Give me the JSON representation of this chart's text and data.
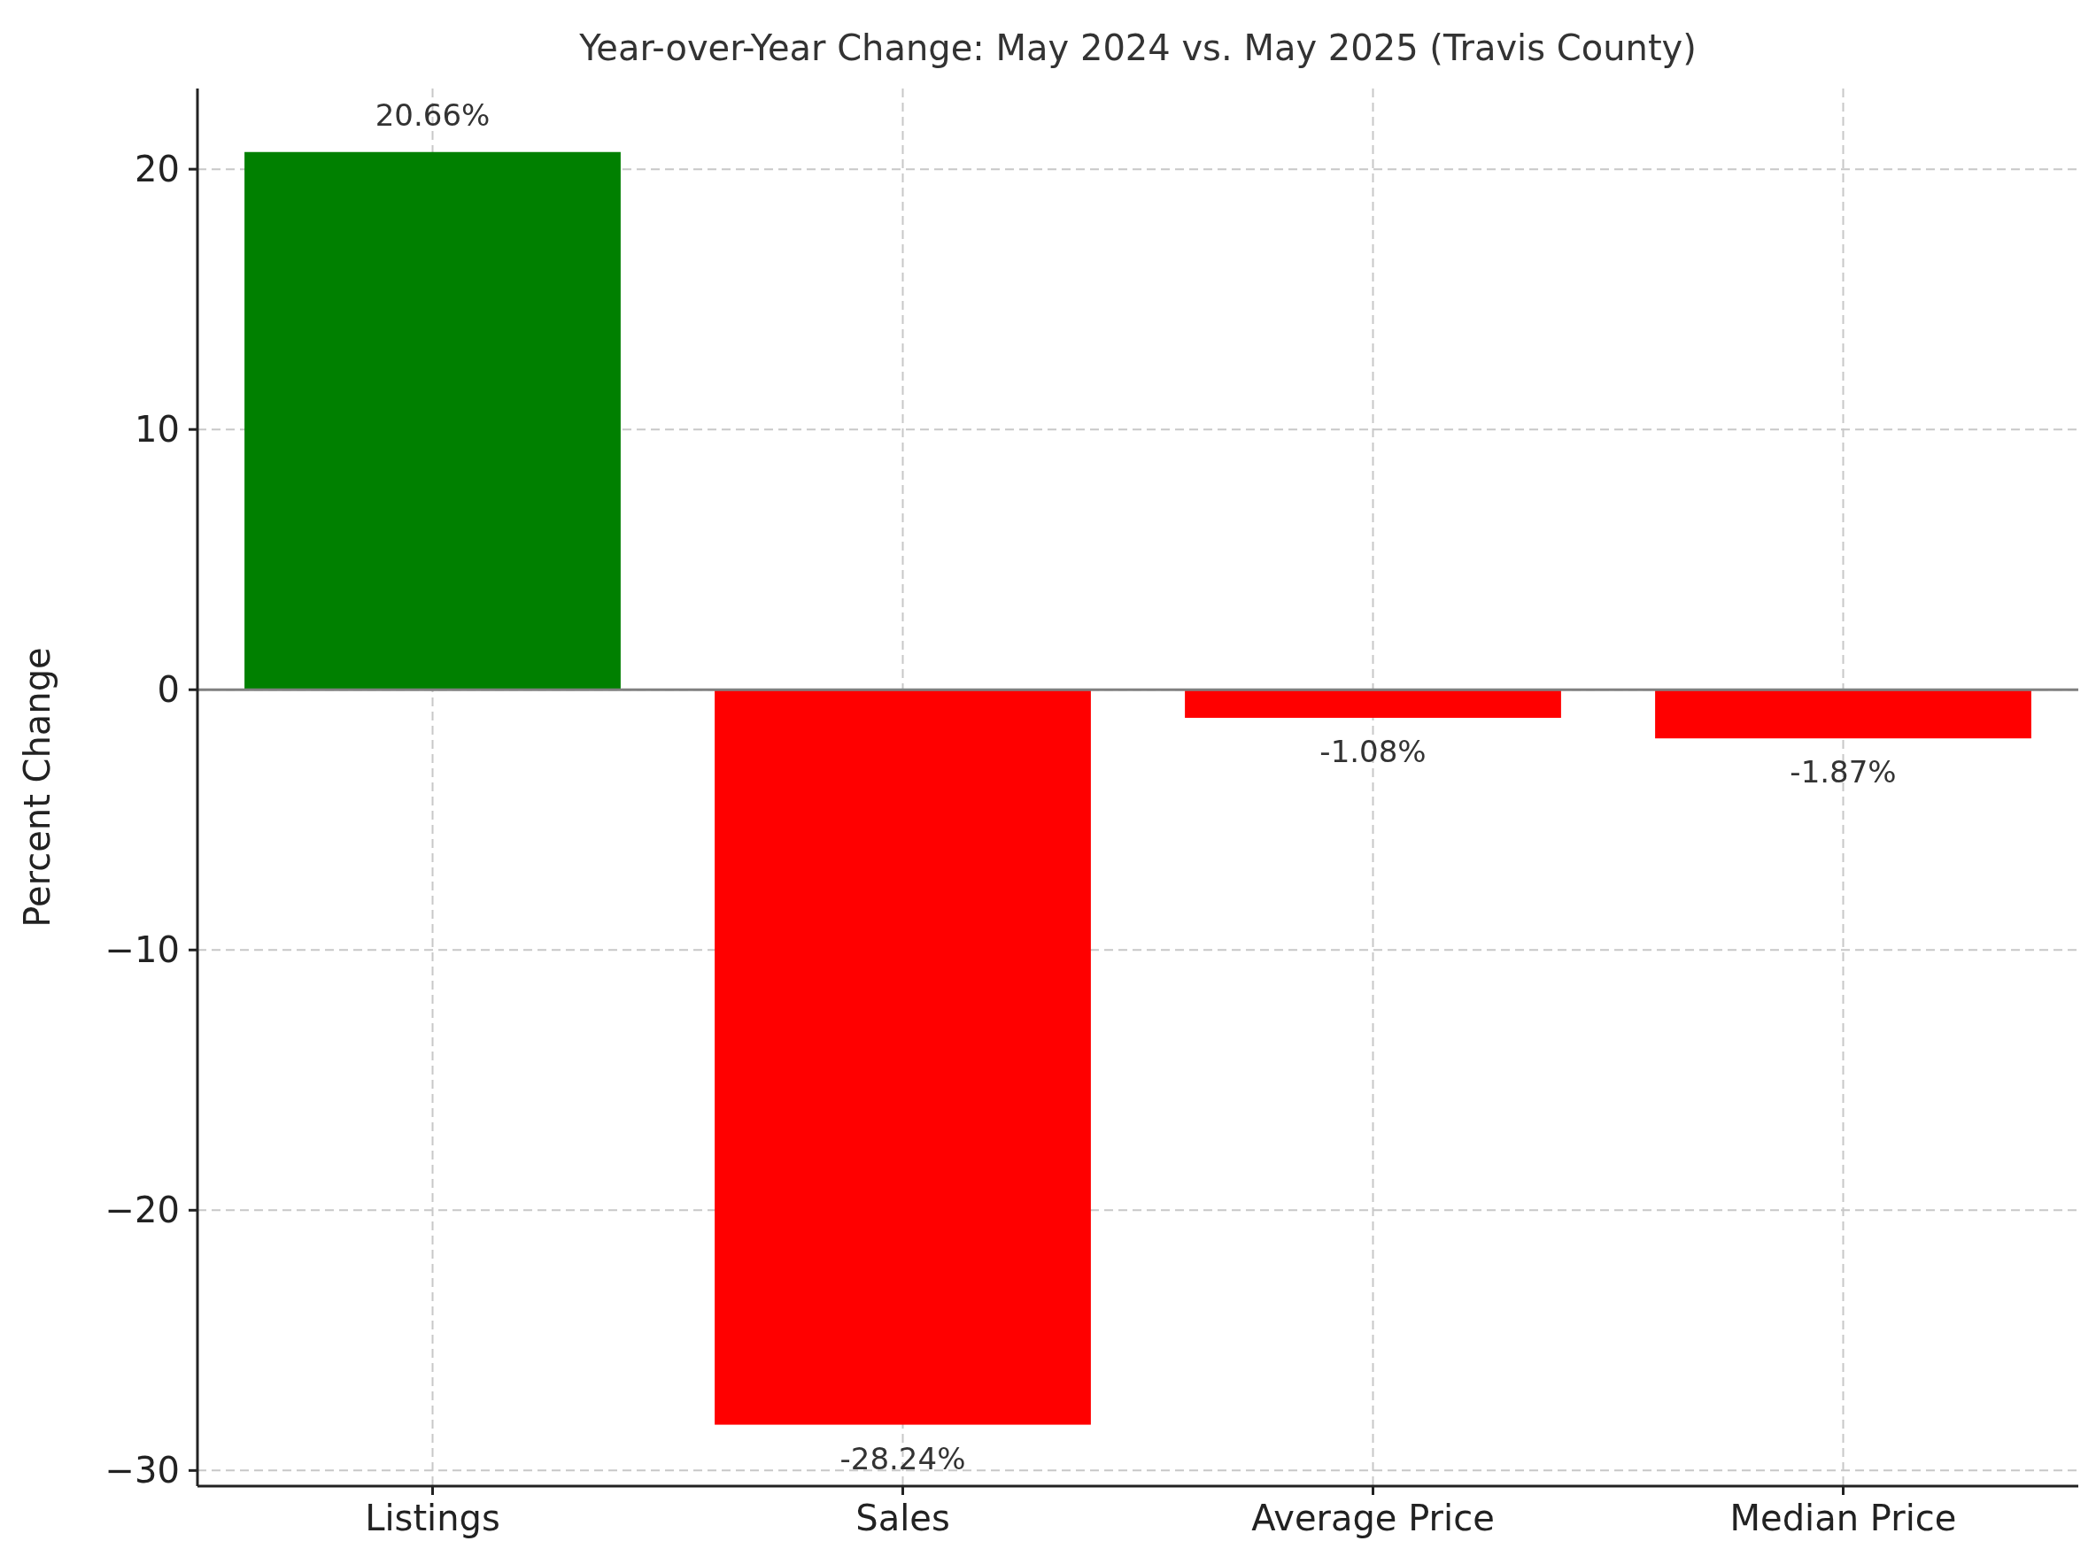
{
  "chart_data": {
    "type": "bar",
    "title": "Year-over-Year Change: May 2024 vs. May 2025 (Travis County)",
    "ylabel": "Percent Change",
    "categories": [
      "Listings",
      "Sales",
      "Average Price",
      "Median Price"
    ],
    "values": [
      20.66,
      -28.24,
      -1.08,
      -1.87
    ],
    "colors": [
      "#008000",
      "#ff0000",
      "#ff0000",
      "#ff0000"
    ],
    "value_labels": [
      "20.66%",
      "-28.24%",
      "-1.08%",
      "-1.87%"
    ],
    "ylim": [
      -30.6,
      23.1
    ],
    "yticks": [
      {
        "value": -30,
        "label": "−30"
      },
      {
        "value": -20,
        "label": "−20"
      },
      {
        "value": -10,
        "label": "−10"
      },
      0,
      10,
      20
    ],
    "grid": true,
    "ref_lines": [
      {
        "axis": "y",
        "value": 0,
        "color": "#808080"
      }
    ]
  }
}
